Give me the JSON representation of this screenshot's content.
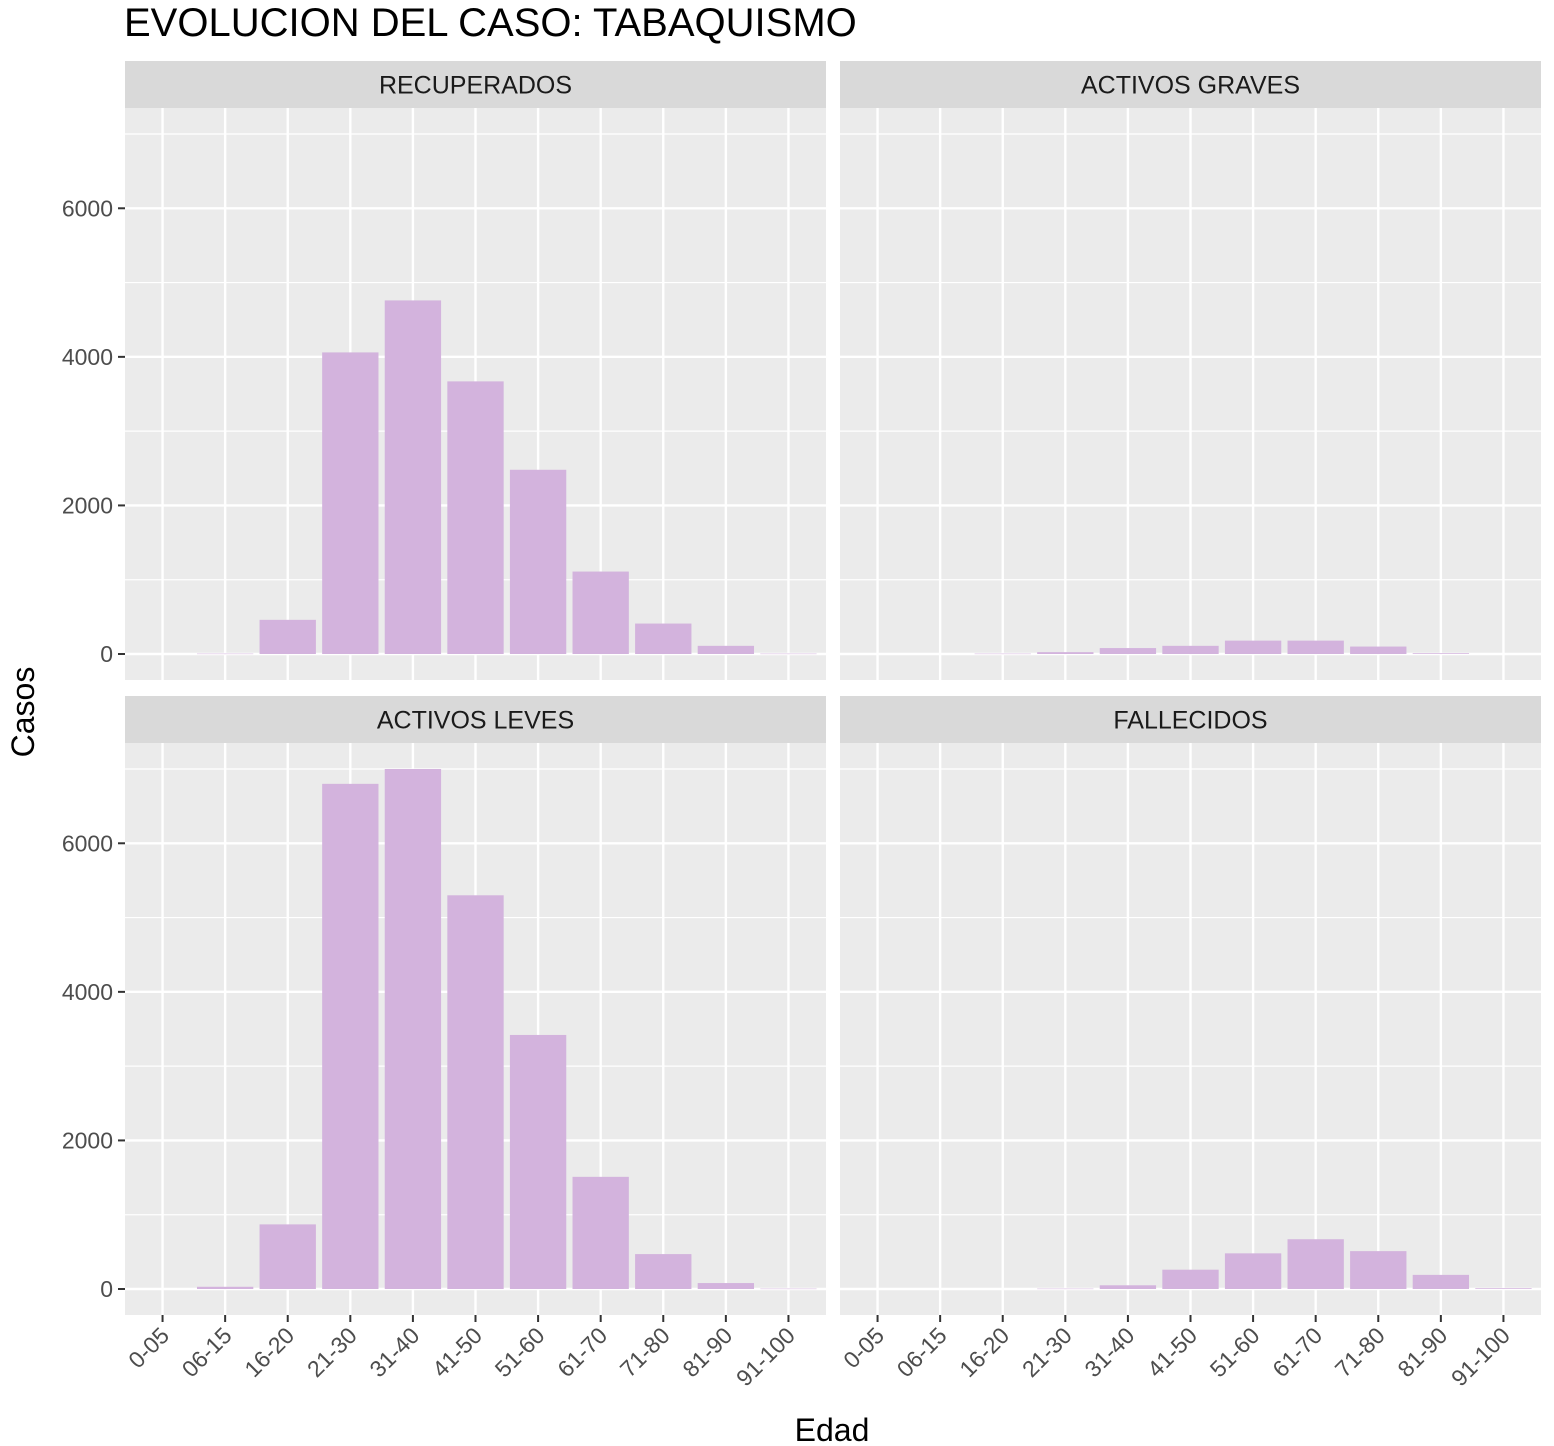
{
  "chart_data": {
    "type": "bar",
    "title": "EVOLUCION DEL CASO: TABAQUISMO",
    "xlabel": "Edad",
    "ylabel": "Casos",
    "ylim": [
      -350,
      7350
    ],
    "yticks": [
      0,
      2000,
      4000,
      6000
    ],
    "grid": true,
    "legend": "none",
    "colors": {
      "bar": "#D3B3DD",
      "panel_bg": "#EBEBEB",
      "strip_bg": "#D9D9D9",
      "grid": "#FFFFFF"
    },
    "categories": [
      "0-05",
      "06-15",
      "16-20",
      "21-30",
      "31-40",
      "41-50",
      "51-60",
      "61-70",
      "71-80",
      "81-90",
      "91-100"
    ],
    "facets": [
      {
        "name": "RECUPERADOS",
        "values": [
          0,
          5,
          460,
          4060,
          4760,
          3670,
          2480,
          1110,
          410,
          110,
          5
        ]
      },
      {
        "name": "ACTIVOS GRAVES",
        "values": [
          0,
          0,
          5,
          25,
          80,
          110,
          180,
          180,
          100,
          10,
          0
        ]
      },
      {
        "name": "ACTIVOS LEVES",
        "values": [
          0,
          30,
          870,
          6800,
          7000,
          5300,
          3420,
          1510,
          470,
          80,
          5
        ]
      },
      {
        "name": "FALLECIDOS",
        "values": [
          0,
          0,
          0,
          5,
          50,
          260,
          480,
          670,
          510,
          190,
          10
        ]
      }
    ]
  }
}
